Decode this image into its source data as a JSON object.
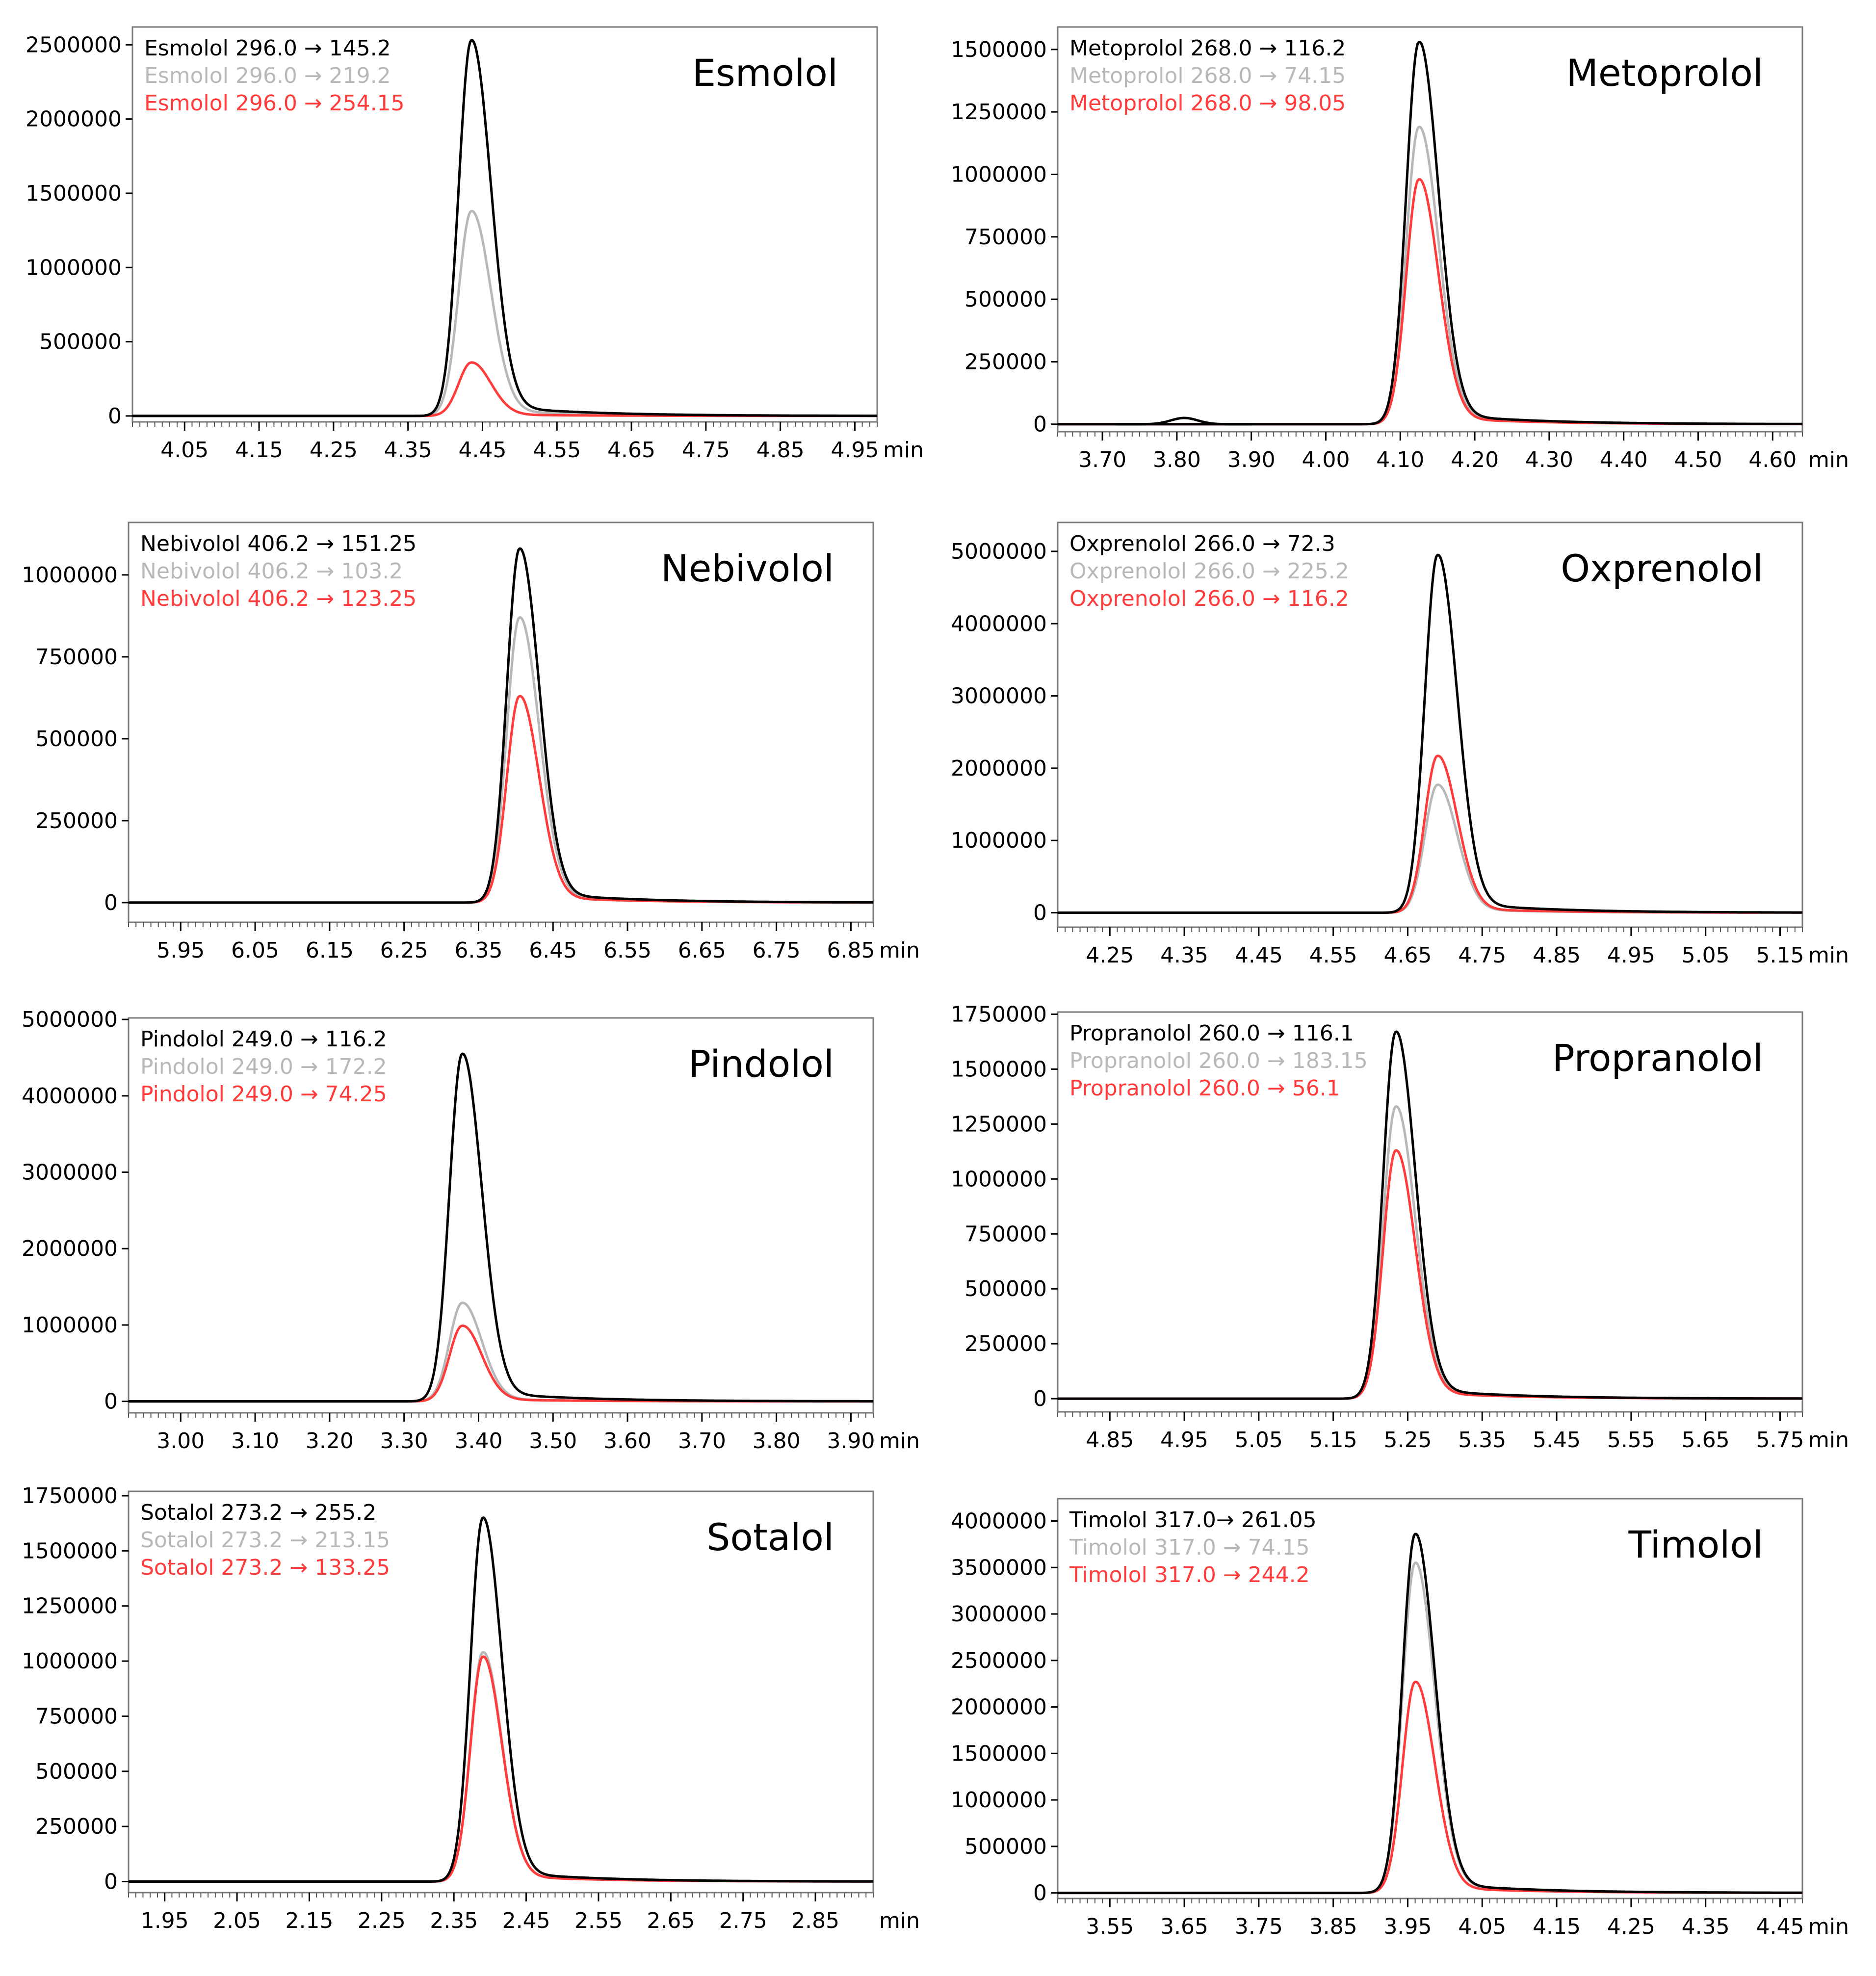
{
  "colors": {
    "series_primary": "#000000",
    "series_secondary": "#b8b8b8",
    "series_tertiary": "#ff3b3b",
    "axis": "#000000",
    "frame": "#7a7a7a"
  },
  "axis_unit": "min",
  "chart_data": [
    {
      "type": "line",
      "title": "Esmolol",
      "xlabel": "min",
      "xlim": [
        3.98,
        4.98
      ],
      "xticks": [
        "4.05",
        "4.15",
        "4.25",
        "4.35",
        "4.45",
        "4.55",
        "4.65",
        "4.75",
        "4.85",
        "4.95"
      ],
      "ylim": [
        -40000,
        2620000
      ],
      "yticks": [
        "0",
        "500000",
        "1000000",
        "1500000",
        "2000000",
        "2500000"
      ],
      "peak_rt": 4.435,
      "series": [
        {
          "name": "Esmolol 296.0 → 145.2",
          "apex": 2530000
        },
        {
          "name": "Esmolol 296.0 → 219.2",
          "apex": 1380000
        },
        {
          "name": "Esmolol 296.0 → 254.15",
          "apex": 360000
        }
      ]
    },
    {
      "type": "line",
      "title": "Metoprolol",
      "xlabel": "min",
      "xlim": [
        3.64,
        4.64
      ],
      "xticks": [
        "3.70",
        "3.80",
        "3.90",
        "4.00",
        "4.10",
        "4.20",
        "4.30",
        "4.40",
        "4.50",
        "4.60"
      ],
      "ylim": [
        -30000,
        1590000
      ],
      "yticks": [
        "0",
        "250000",
        "500000",
        "750000",
        "1000000",
        "1250000",
        "1500000"
      ],
      "peak_rt": 4.125,
      "series": [
        {
          "name": "Metoprolol 268.0 → 116.2",
          "apex": 1530000
        },
        {
          "name": "Metoprolol 268.0 → 74.15",
          "apex": 1190000
        },
        {
          "name": "Metoprolol 268.0 → 98.05",
          "apex": 980000
        }
      ]
    },
    {
      "type": "line",
      "title": "Nebivolol",
      "xlabel": "min",
      "xlim": [
        5.88,
        6.88
      ],
      "xticks": [
        "5.95",
        "6.05",
        "6.15",
        "6.25",
        "6.35",
        "6.45",
        "6.55",
        "6.65",
        "6.75",
        "6.85"
      ],
      "ylim": [
        -60000,
        1160000
      ],
      "yticks": [
        "0",
        "250000",
        "500000",
        "750000",
        "1000000"
      ],
      "peak_rt": 6.405,
      "series": [
        {
          "name": "Nebivolol 406.2 → 151.25",
          "apex": 1080000
        },
        {
          "name": "Nebivolol 406.2 → 103.2",
          "apex": 870000
        },
        {
          "name": "Nebivolol 406.2 → 123.25",
          "apex": 630000
        }
      ]
    },
    {
      "type": "line",
      "title": "Oxprenolol",
      "xlabel": "min",
      "xlim": [
        4.18,
        5.18
      ],
      "xticks": [
        "4.25",
        "4.35",
        "4.45",
        "4.55",
        "4.65",
        "4.75",
        "4.85",
        "4.95",
        "5.05",
        "5.15"
      ],
      "ylim": [
        -200000,
        5400000
      ],
      "yticks": [
        "0",
        "1000000",
        "2000000",
        "3000000",
        "4000000",
        "5000000"
      ],
      "peak_rt": 4.69,
      "series": [
        {
          "name": "Oxprenolol 266.0 → 72.3",
          "apex": 4950000
        },
        {
          "name": "Oxprenolol 266.0 → 225.2",
          "apex": 1770000
        },
        {
          "name": "Oxprenolol 266.0 → 116.2",
          "apex": 2170000
        }
      ]
    },
    {
      "type": "line",
      "title": "Pindolol",
      "xlabel": "min",
      "xlim": [
        2.93,
        3.93
      ],
      "xticks": [
        "3.00",
        "3.10",
        "3.20",
        "3.30",
        "3.40",
        "3.50",
        "3.60",
        "3.70",
        "3.80",
        "3.90"
      ],
      "ylim": [
        -150000,
        5020000
      ],
      "yticks": [
        "0",
        "1000000",
        "2000000",
        "3000000",
        "4000000",
        "5000000"
      ],
      "peak_rt": 3.378,
      "series": [
        {
          "name": "Pindolol 249.0 → 116.2",
          "apex": 4550000
        },
        {
          "name": "Pindolol 249.0 → 172.2",
          "apex": 1290000
        },
        {
          "name": "Pindolol 249.0 → 74.25",
          "apex": 990000
        }
      ]
    },
    {
      "type": "line",
      "title": "Propranolol",
      "xlabel": "min",
      "xlim": [
        4.78,
        5.78
      ],
      "xticks": [
        "4.85",
        "4.95",
        "5.05",
        "5.15",
        "5.25",
        "5.35",
        "5.45",
        "5.55",
        "5.65",
        "5.75"
      ],
      "ylim": [
        -60000,
        1760000
      ],
      "yticks": [
        "0",
        "250000",
        "500000",
        "750000",
        "1000000",
        "1250000",
        "1500000",
        "1750000"
      ],
      "peak_rt": 5.234,
      "series": [
        {
          "name": "Propranolol 260.0 → 116.1",
          "apex": 1670000
        },
        {
          "name": "Propranolol 260.0 → 183.15",
          "apex": 1330000
        },
        {
          "name": "Propranolol 260.0 → 56.1",
          "apex": 1130000
        }
      ]
    },
    {
      "type": "line",
      "title": "Sotalol",
      "xlabel": "min",
      "xlim": [
        1.9,
        2.93
      ],
      "xticks": [
        "1.95",
        "2.05",
        "2.15",
        "2.25",
        "2.35",
        "2.45",
        "2.55",
        "2.65",
        "2.75",
        "2.85"
      ],
      "ylim": [
        -50000,
        1770000
      ],
      "yticks": [
        "0",
        "250000",
        "500000",
        "750000",
        "1000000",
        "1250000",
        "1500000",
        "1750000"
      ],
      "peak_rt": 2.39,
      "series": [
        {
          "name": "Sotalol 273.2 → 255.2",
          "apex": 1650000
        },
        {
          "name": "Sotalol 273.2 → 213.15",
          "apex": 1040000
        },
        {
          "name": "Sotalol 273.2 → 133.25",
          "apex": 1020000
        }
      ]
    },
    {
      "type": "line",
      "title": "Timolol",
      "xlabel": "min",
      "xlim": [
        3.48,
        4.48
      ],
      "xticks": [
        "3.55",
        "3.65",
        "3.75",
        "3.85",
        "3.95",
        "4.05",
        "4.15",
        "4.25",
        "4.35",
        "4.45"
      ],
      "ylim": [
        -60000,
        4240000
      ],
      "yticks": [
        "0",
        "500000",
        "1000000",
        "1500000",
        "2000000",
        "2500000",
        "3000000",
        "3500000",
        "4000000"
      ],
      "peak_rt": 3.96,
      "series": [
        {
          "name": "Timolol 317.0→ 261.05",
          "apex": 3860000
        },
        {
          "name": "Timolol 317.0 → 74.15",
          "apex": 3550000
        },
        {
          "name": "Timolol 317.0 → 244.2",
          "apex": 2270000
        }
      ]
    }
  ]
}
